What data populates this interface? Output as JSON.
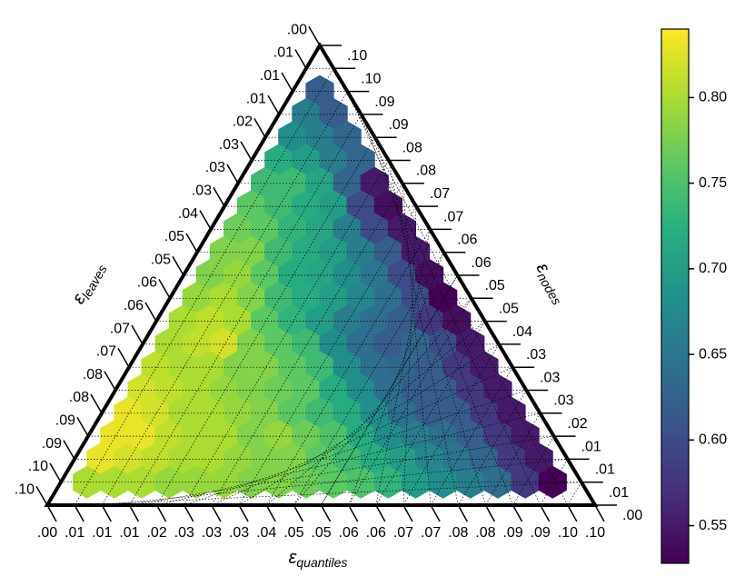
{
  "chart_data": {
    "type": "ternary_hexbin",
    "colormap": "viridis",
    "grid": true,
    "axis_labels": {
      "left": {
        "symbol": "ε",
        "sub": "leaves"
      },
      "right": {
        "symbol": "ε",
        "sub": "nodes"
      },
      "bottom": {
        "symbol": "ε",
        "sub": "quantiles"
      }
    },
    "xlim": [
      0,
      0.1
    ],
    "xticks": [
      {
        "value": 0,
        "label": ".00"
      },
      {
        "value": 0.005,
        "label": ".01"
      },
      {
        "value": 0.01,
        "label": ".01"
      },
      {
        "value": 0.015,
        "label": ".01"
      },
      {
        "value": 0.02,
        "label": ".02"
      },
      {
        "value": 0.025,
        "label": ".03"
      },
      {
        "value": 0.03,
        "label": ".03"
      },
      {
        "value": 0.035,
        "label": ".03"
      },
      {
        "value": 0.04,
        "label": ".04"
      },
      {
        "value": 0.045,
        "label": ".05"
      },
      {
        "value": 0.05,
        "label": ".05"
      },
      {
        "value": 0.055,
        "label": ".06"
      },
      {
        "value": 0.06,
        "label": ".06"
      },
      {
        "value": 0.065,
        "label": ".07"
      },
      {
        "value": 0.07,
        "label": ".07"
      },
      {
        "value": 0.075,
        "label": ".08"
      },
      {
        "value": 0.08,
        "label": ".08"
      },
      {
        "value": 0.085,
        "label": ".09"
      },
      {
        "value": 0.09,
        "label": ".09"
      },
      {
        "value": 0.095,
        "label": ".10"
      },
      {
        "value": 0.1,
        "label": ".10"
      }
    ],
    "values": [
      [
        0.62
      ],
      [
        0.66,
        0.62
      ],
      [
        0.68,
        0.66,
        0.63
      ],
      [
        0.72,
        0.7,
        0.66,
        0.63
      ],
      [
        0.74,
        0.74,
        0.71,
        0.63,
        0.55
      ],
      [
        0.76,
        0.74,
        0.72,
        0.7,
        0.6,
        0.54
      ],
      [
        0.77,
        0.76,
        0.73,
        0.71,
        0.66,
        0.6,
        0.55
      ],
      [
        0.78,
        0.78,
        0.74,
        0.72,
        0.7,
        0.66,
        0.62,
        0.55
      ],
      [
        0.78,
        0.79,
        0.76,
        0.72,
        0.71,
        0.68,
        0.65,
        0.6,
        0.54
      ],
      [
        0.79,
        0.8,
        0.78,
        0.74,
        0.72,
        0.7,
        0.67,
        0.64,
        0.6,
        0.53
      ],
      [
        0.8,
        0.81,
        0.8,
        0.76,
        0.73,
        0.7,
        0.66,
        0.64,
        0.62,
        0.58,
        0.54
      ],
      [
        0.8,
        0.81,
        0.82,
        0.78,
        0.76,
        0.74,
        0.68,
        0.64,
        0.62,
        0.63,
        0.6,
        0.55
      ],
      [
        0.81,
        0.8,
        0.8,
        0.78,
        0.78,
        0.76,
        0.74,
        0.68,
        0.64,
        0.63,
        0.62,
        0.58,
        0.55
      ],
      [
        0.82,
        0.81,
        0.8,
        0.79,
        0.78,
        0.77,
        0.76,
        0.72,
        0.68,
        0.64,
        0.62,
        0.62,
        0.58,
        0.55
      ],
      [
        0.83,
        0.82,
        0.8,
        0.8,
        0.79,
        0.78,
        0.76,
        0.74,
        0.72,
        0.68,
        0.64,
        0.62,
        0.62,
        0.58,
        0.55
      ],
      [
        0.83,
        0.83,
        0.81,
        0.8,
        0.8,
        0.78,
        0.79,
        0.77,
        0.75,
        0.72,
        0.68,
        0.66,
        0.64,
        0.62,
        0.58,
        0.55
      ],
      [
        0.83,
        0.82,
        0.81,
        0.8,
        0.8,
        0.79,
        0.78,
        0.78,
        0.76,
        0.74,
        0.72,
        0.7,
        0.67,
        0.65,
        0.63,
        0.58,
        0.55
      ],
      [
        0.8,
        0.8,
        0.8,
        0.79,
        0.79,
        0.79,
        0.78,
        0.78,
        0.77,
        0.76,
        0.75,
        0.73,
        0.7,
        0.68,
        0.66,
        0.64,
        0.58,
        0.53
      ]
    ],
    "colorbar": {
      "ylim": [
        0.528,
        0.84
      ],
      "yticks": [
        0.55,
        {
          "value": 0.6,
          "label": "0.60"
        },
        0.65,
        {
          "value": 0.7,
          "label": "0.70"
        },
        0.75,
        {
          "value": 0.8,
          "label": "0.80"
        }
      ]
    }
  }
}
